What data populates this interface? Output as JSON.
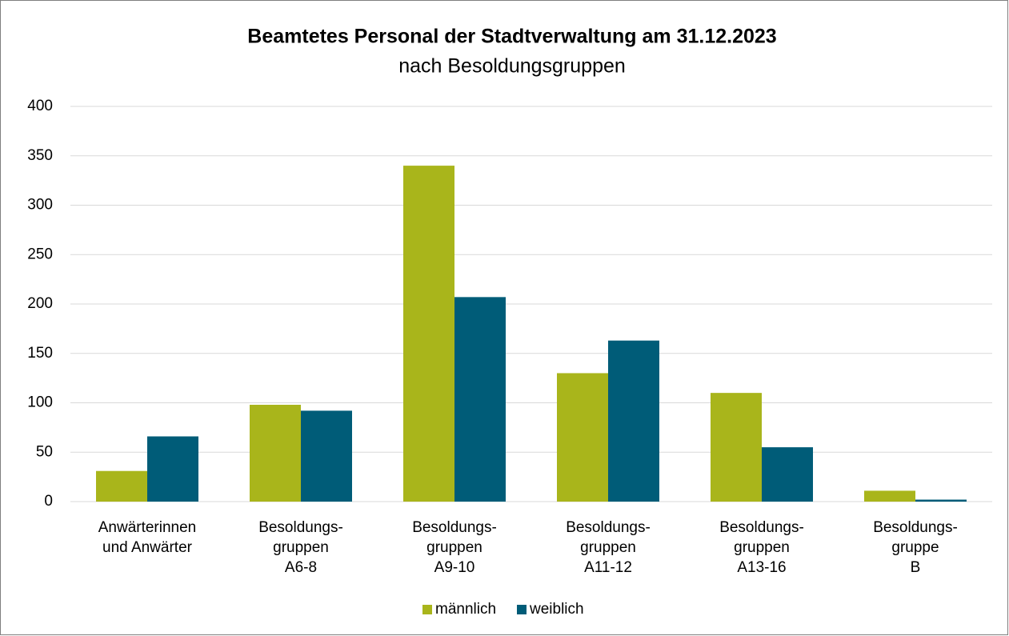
{
  "chart_data": {
    "type": "bar",
    "title": "Beamtetes Personal der Stadtverwaltung am 31.12.2023",
    "subtitle": "nach Besoldungsgruppen",
    "categories": [
      "Anwärterinnen\nund Anwärter",
      "Besoldungs-\ngruppen\nA6-8",
      "Besoldungs-\ngruppen\nA9-10",
      "Besoldungs-\ngruppen\nA11-12",
      "Besoldungs-\ngruppen\nA13-16",
      "Besoldungs-\ngruppe\nB"
    ],
    "series": [
      {
        "name": "männlich",
        "color": "#a9b51b",
        "values": [
          31,
          98,
          340,
          130,
          110,
          11
        ]
      },
      {
        "name": "weiblich",
        "color": "#005c78",
        "values": [
          66,
          92,
          207,
          163,
          55,
          2
        ]
      }
    ],
    "ylim": [
      0,
      400
    ],
    "yticks": [
      0,
      50,
      100,
      150,
      200,
      250,
      300,
      350,
      400
    ],
    "grid": true,
    "legend": "bottom"
  }
}
